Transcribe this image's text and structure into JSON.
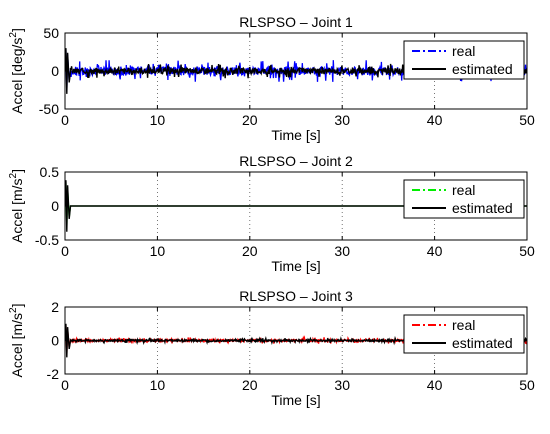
{
  "chart_data": [
    {
      "type": "line",
      "title": "RLSPSO – Joint 1",
      "xlabel": "Time [s]",
      "ylabel_main": "Accel [deg/s",
      "ylabel_sup": "2",
      "ylabel_tail": "]",
      "xlim": [
        0,
        50
      ],
      "ylim": [
        -50,
        50
      ],
      "xticks": [
        0,
        10,
        20,
        30,
        40,
        50
      ],
      "yticks": [
        -50,
        0,
        50
      ],
      "grid": "vertical dotted",
      "legend_position": "top-right",
      "legend_handle_height_fraction": 0.155,
      "legend": [
        "real",
        "estimated"
      ],
      "series": [
        {
          "name": "real",
          "color": "#0000ff",
          "style": "dash-dot",
          "noise_amplitude": 9
        },
        {
          "name": "estimated",
          "color": "#000000",
          "style": "solid",
          "noise_amplitude": 6
        }
      ],
      "transient": {
        "t": [
          0.1,
          0.45
        ],
        "peak": 30
      }
    },
    {
      "type": "line",
      "title": "RLSPSO – Joint 2",
      "xlabel": "Time [s]",
      "ylabel_main": "Accel [m/s",
      "ylabel_sup": "2",
      "ylabel_tail": "]",
      "xlim": [
        0,
        50
      ],
      "ylim": [
        -0.5,
        0.5
      ],
      "xticks": [
        0,
        10,
        20,
        30,
        40,
        50
      ],
      "yticks": [
        -0.5,
        0,
        0.5
      ],
      "grid": "vertical dotted",
      "legend_position": "top-right",
      "legend_handle_height_fraction": 0.155,
      "legend": [
        "real",
        "estimated"
      ],
      "series": [
        {
          "name": "real",
          "color": "#00ee00",
          "style": "dash-dot",
          "noise_amplitude": 0
        },
        {
          "name": "estimated",
          "color": "#000000",
          "style": "solid",
          "noise_amplitude": 0
        }
      ],
      "transient": {
        "t": [
          0.1,
          0.45
        ],
        "peak": 0.38
      }
    },
    {
      "type": "line",
      "title": "RLSPSO – Joint 3",
      "xlabel": "Time [s]",
      "ylabel_main": "Accel [m/s",
      "ylabel_sup": "2",
      "ylabel_tail": "]",
      "xlim": [
        0,
        50
      ],
      "ylim": [
        -2,
        2
      ],
      "xticks": [
        0,
        10,
        20,
        30,
        40,
        50
      ],
      "yticks": [
        -2,
        0,
        2
      ],
      "grid": "vertical dotted",
      "legend_position": "top-right",
      "legend_handle_height_fraction": 0.155,
      "legend": [
        "real",
        "estimated"
      ],
      "series": [
        {
          "name": "real",
          "color": "#ff0000",
          "style": "dash-dot",
          "noise_amplitude": 0.12
        },
        {
          "name": "estimated",
          "color": "#000000",
          "style": "solid",
          "noise_amplitude": 0.09
        }
      ],
      "transient": {
        "t": [
          0.1,
          0.45
        ],
        "peak": 1.0
      }
    }
  ]
}
